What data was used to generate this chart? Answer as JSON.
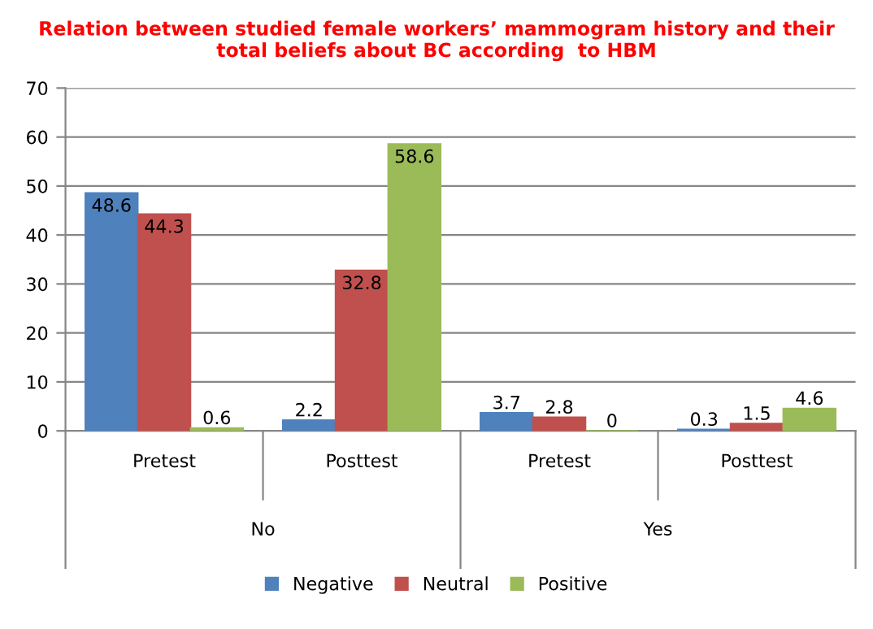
{
  "chart_data": {
    "type": "bar",
    "title": "Relation between studied female workers’ mammogram history and their\ntotal beliefs about BC according  to HBM",
    "categories": [
      "Pretest",
      "Posttest",
      "Pretest",
      "Posttest"
    ],
    "annotations": [
      "No",
      "Yes"
    ],
    "series": [
      {
        "name": "Negative",
        "color": "#4f81bd",
        "values": [
          48.6,
          2.2,
          3.7,
          0.3
        ]
      },
      {
        "name": "Neutral",
        "color": "#c0504d",
        "values": [
          44.3,
          32.8,
          2.8,
          1.5
        ]
      },
      {
        "name": "Positive",
        "color": "#9bbb59",
        "values": [
          0.6,
          58.6,
          0,
          4.6
        ]
      }
    ],
    "ylim": [
      0,
      70
    ],
    "yticks": [
      0,
      10,
      20,
      30,
      40,
      50,
      60,
      70
    ],
    "grid": "y",
    "legend": "bottom",
    "data_labels": true
  }
}
